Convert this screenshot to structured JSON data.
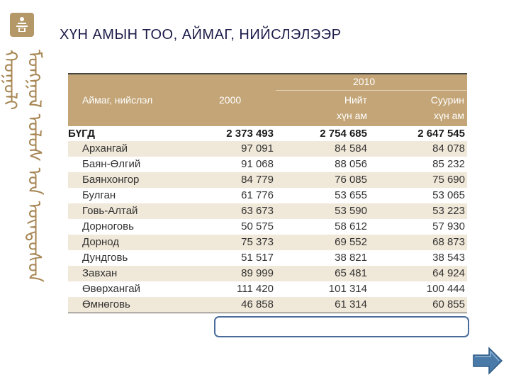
{
  "title": "ХҮН АМЫН ТОО, АЙМАГ, НИЙСЛЭЛЭЭР",
  "sidebar": {
    "script_text": "ᠮᠣᠩᠭᠣᠯ ᠤᠯᠤᠰ ᠤᠨ ᠦᠨᠳᠦᠰᠦᠨ ᠬᠤᠭᠤᠯᠢ"
  },
  "table": {
    "header": {
      "col_name": "Аймаг, нийслэл",
      "col_2000": "2000",
      "year_group": "2010",
      "col_total_l1": "Нийт",
      "col_total_l2": "хүн ам",
      "col_res_l1": "Суурин",
      "col_res_l2": "хүн ам"
    },
    "rows": [
      {
        "name": "БҮГД",
        "v2000": "2 373 493",
        "total": "2 754 685",
        "resident": "2 647 545"
      },
      {
        "name": "Архангай",
        "v2000": "97 091",
        "total": "84 584",
        "resident": "84 078"
      },
      {
        "name": "Баян-Өлгий",
        "v2000": "91 068",
        "total": "88 056",
        "resident": "85 232"
      },
      {
        "name": "Баянхонгор",
        "v2000": "84 779",
        "total": "76 085",
        "resident": "75 690"
      },
      {
        "name": "Булган",
        "v2000": "61 776",
        "total": "53 655",
        "resident": "53 065"
      },
      {
        "name": "Говь-Алтай",
        "v2000": "63 673",
        "total": "53 590",
        "resident": "53 223"
      },
      {
        "name": "Дорноговь",
        "v2000": "50 575",
        "total": "58 612",
        "resident": "57 930"
      },
      {
        "name": "Дорнод",
        "v2000": "75 373",
        "total": "69 552",
        "resident": "68 873"
      },
      {
        "name": "Дундговь",
        "v2000": "51 517",
        "total": "38 821",
        "resident": "38 543"
      },
      {
        "name": "Завхан",
        "v2000": "89 999",
        "total": "65 481",
        "resident": "64 924"
      },
      {
        "name": "Өвөрхангай",
        "v2000": "111 420",
        "total": "101 314",
        "resident": "100 444"
      },
      {
        "name": "Өмнөговь",
        "v2000": "46 858",
        "total": "61 314",
        "resident": "60 855"
      }
    ]
  },
  "colors": {
    "header_bg": "#c3a577",
    "row_shade": "#f0e8d8",
    "title": "#1c1c4a",
    "highlight_border": "#4a6c9b",
    "next_arrow": "#4a7aa8"
  },
  "icons": {
    "emblem": "soyombo-emblem-icon",
    "next": "next-arrow-icon"
  }
}
